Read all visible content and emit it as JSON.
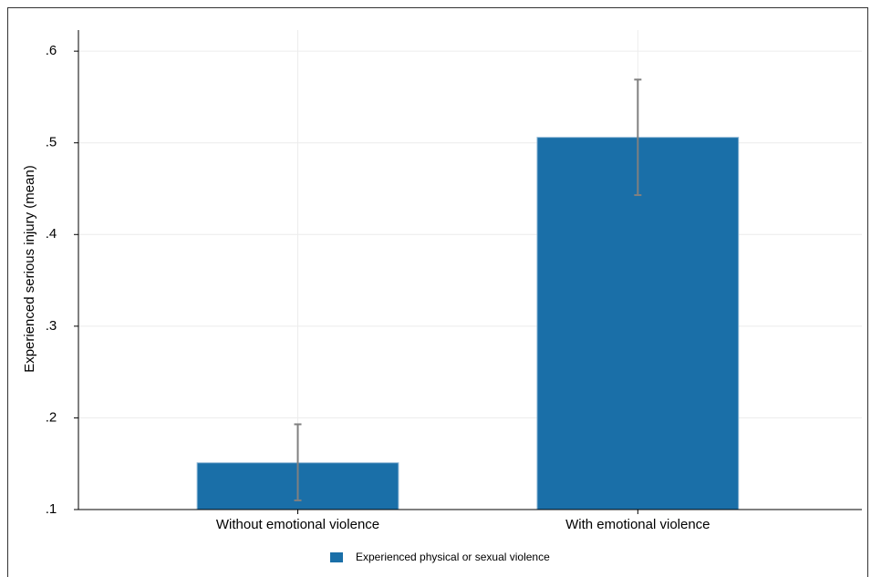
{
  "chart_data": {
    "type": "bar",
    "y_label": "Experienced serious injury (mean)",
    "categories": [
      "Without emotional violence",
      "With emotional violence"
    ],
    "series": [
      {
        "name": "Experienced physical or sexual violence",
        "color": "#1a6fa8",
        "values": [
          0.151,
          0.506
        ]
      }
    ],
    "ci_low": [
      0.11,
      0.443
    ],
    "ci_high": [
      0.193,
      0.569
    ],
    "ylim": [
      0.1,
      0.623
    ],
    "yticks": [
      {
        "value": 0.1,
        "label": ".1"
      },
      {
        "value": 0.2,
        "label": ".2"
      },
      {
        "value": 0.3,
        "label": ".3"
      },
      {
        "value": 0.4,
        "label": ".4"
      },
      {
        "value": 0.5,
        "label": ".5"
      },
      {
        "value": 0.6,
        "label": ".6"
      }
    ],
    "grid": true
  }
}
